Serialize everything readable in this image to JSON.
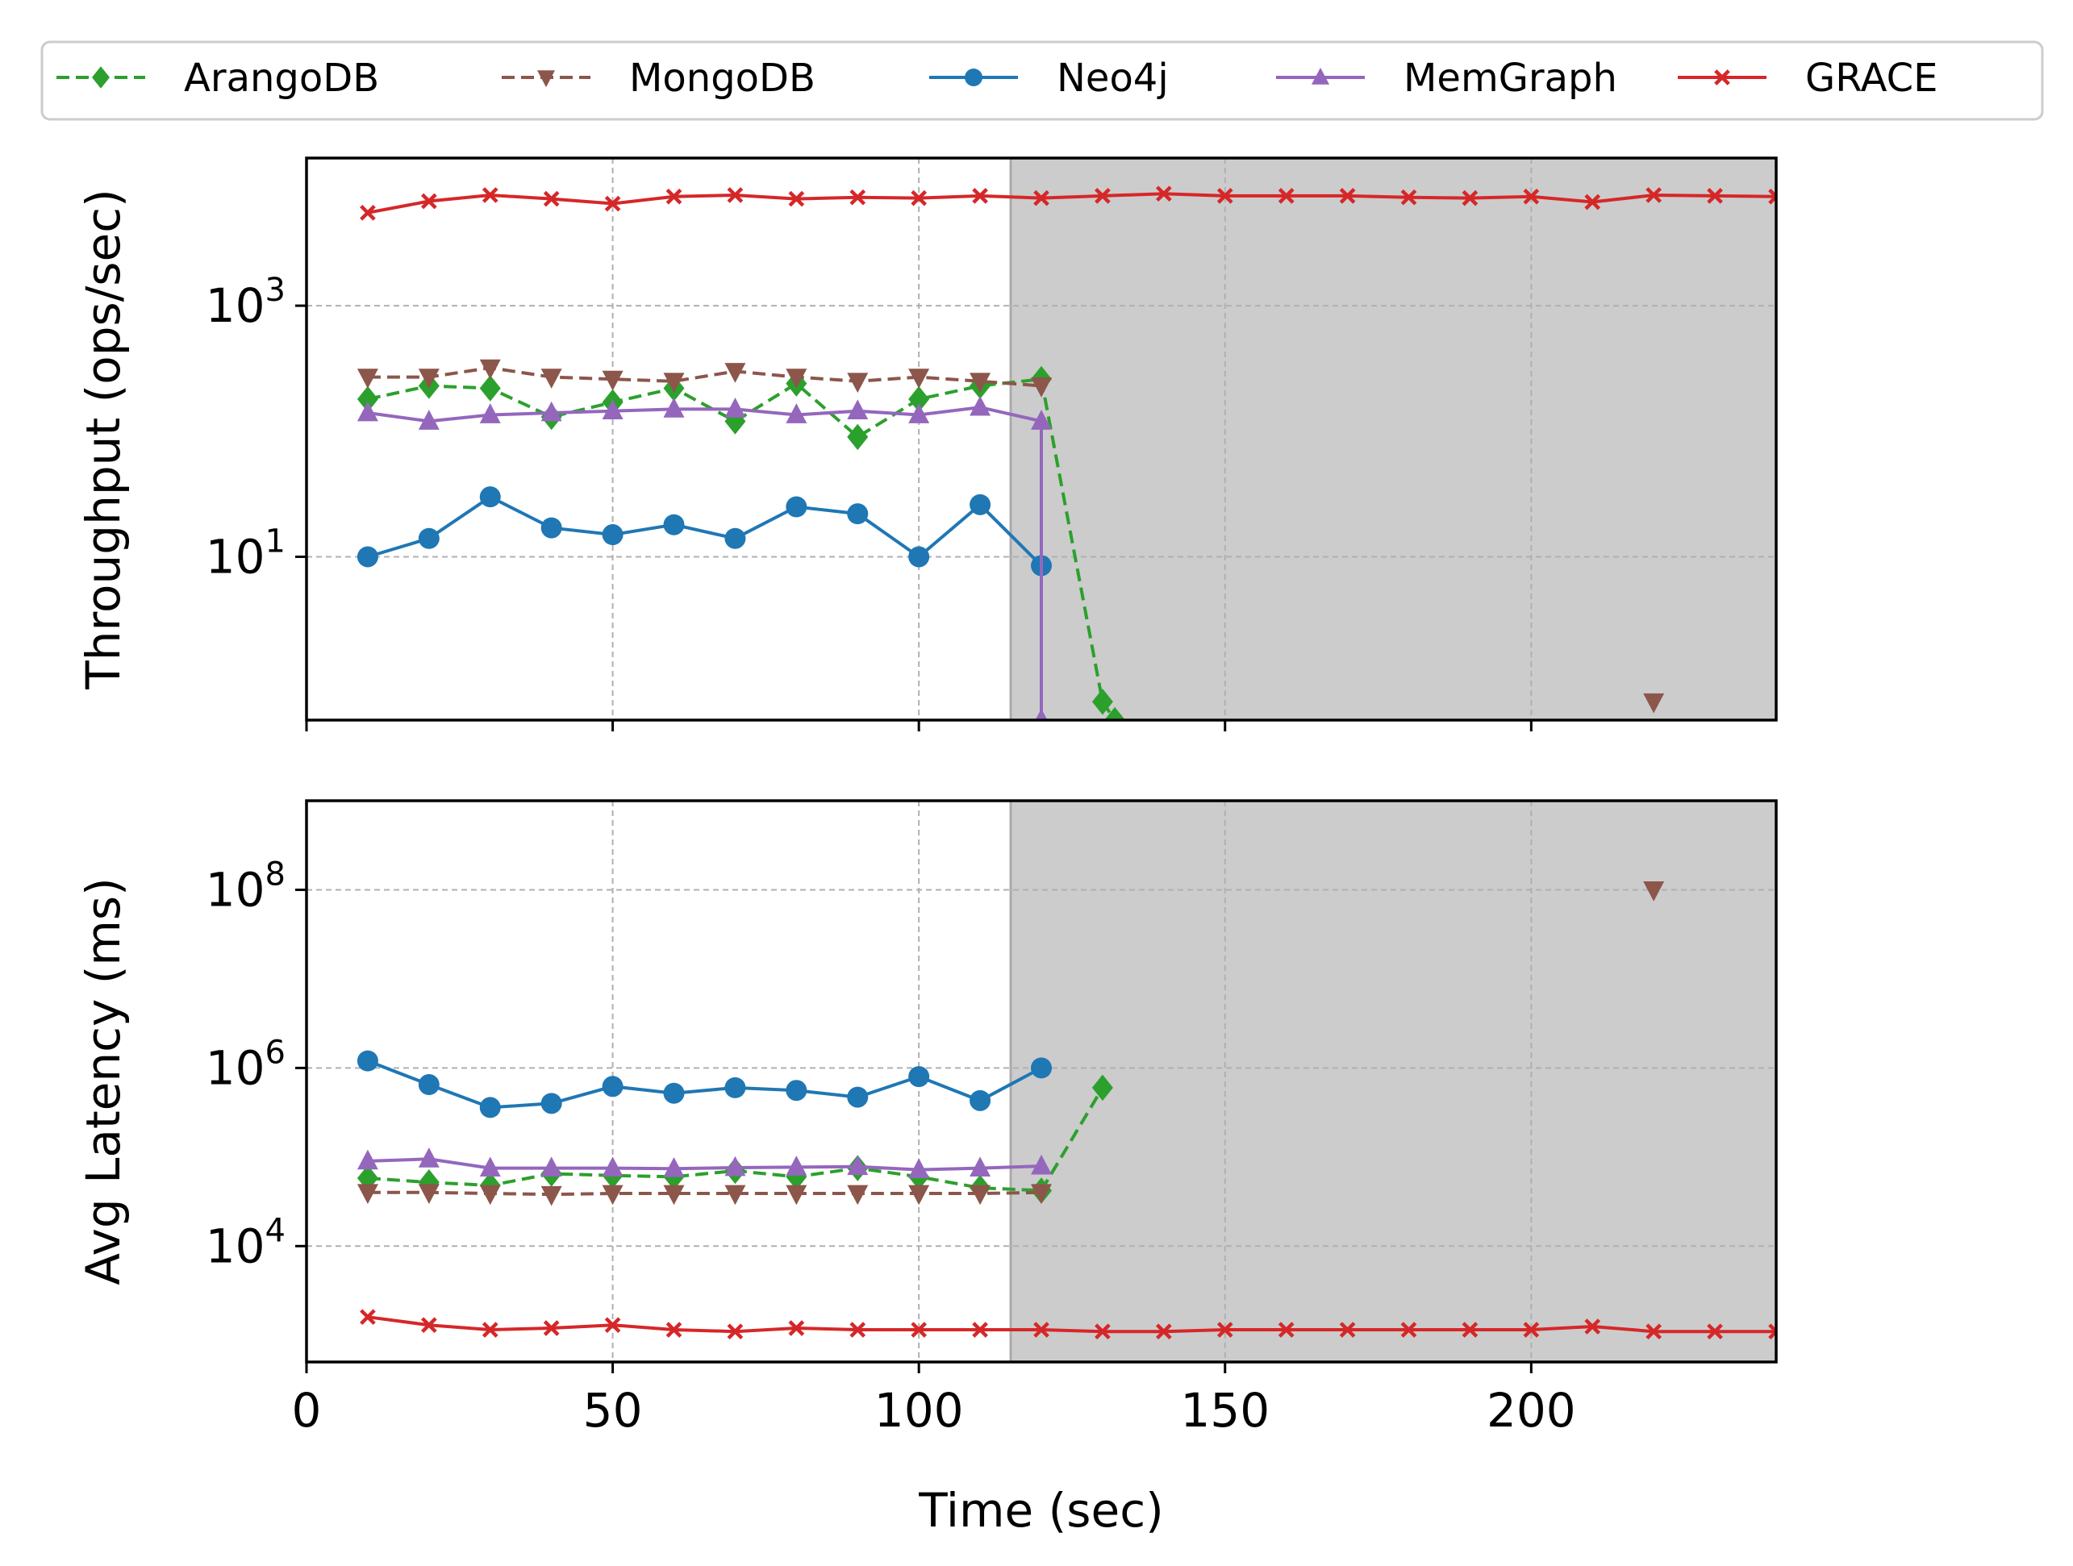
{
  "legend": {
    "placement": "top",
    "entries": [
      {
        "name": "ArangoDB",
        "color": "#2ca02c",
        "marker": "diamond",
        "dash": true
      },
      {
        "name": "MongoDB",
        "color": "#8c564b",
        "marker": "triangle-down",
        "dash": true
      },
      {
        "name": "Neo4j",
        "color": "#1f77b4",
        "marker": "circle",
        "dash": false
      },
      {
        "name": "MemGraph",
        "color": "#9467bd",
        "marker": "triangle-up",
        "dash": false
      },
      {
        "name": "GRACE",
        "color": "#d62728",
        "marker": "x",
        "dash": false
      }
    ]
  },
  "chart_data": [
    {
      "type": "line",
      "ylabel": "Throughput (ops/sec)",
      "yscale": "log",
      "xlim": [
        0,
        240
      ],
      "ylim": [
        0.5,
        15000
      ],
      "x_ticks": [
        0,
        50,
        100,
        150,
        200
      ],
      "y_ticks": [
        {
          "value": 1000,
          "base": "10",
          "exp": "3"
        },
        {
          "value": 10,
          "base": "10",
          "exp": "1"
        }
      ],
      "grid": true,
      "shaded_region": {
        "x_start": 115,
        "x_end": 240,
        "color": "#cccccc"
      },
      "series": [
        {
          "name": "ArangoDB",
          "x": [
            10,
            20,
            30,
            40,
            50,
            60,
            70,
            80,
            90,
            100,
            110,
            120,
            130,
            132
          ],
          "y": [
            180,
            230,
            220,
            130,
            170,
            220,
            120,
            240,
            90,
            180,
            230,
            260,
            0.7,
            0.5
          ]
        },
        {
          "name": "MongoDB",
          "x": [
            10,
            20,
            30,
            40,
            50,
            60,
            70,
            80,
            90,
            100,
            110,
            120
          ],
          "y": [
            270,
            270,
            320,
            270,
            260,
            250,
            300,
            270,
            250,
            270,
            250,
            230
          ]
        },
        {
          "name": "MongoDB",
          "x": [
            220
          ],
          "y": [
            0.7
          ]
        },
        {
          "name": "Neo4j",
          "x": [
            10,
            20,
            30,
            40,
            50,
            60,
            70,
            80,
            90,
            100,
            110,
            120
          ],
          "y": [
            10,
            14,
            30,
            17,
            15,
            18,
            14,
            25,
            22,
            10,
            26,
            8.5
          ]
        },
        {
          "name": "MemGraph",
          "x": [
            10,
            20,
            30,
            40,
            50,
            60,
            70,
            80,
            90,
            100,
            110,
            120,
            120
          ],
          "y": [
            140,
            120,
            135,
            140,
            145,
            150,
            150,
            135,
            145,
            135,
            155,
            120,
            0.5
          ]
        },
        {
          "name": "GRACE",
          "x": [
            10,
            20,
            30,
            40,
            50,
            60,
            70,
            80,
            90,
            100,
            110,
            120,
            130,
            140,
            150,
            160,
            170,
            180,
            190,
            200,
            210,
            220,
            230,
            240
          ],
          "y": [
            5500,
            6800,
            7600,
            7100,
            6500,
            7400,
            7600,
            7100,
            7300,
            7200,
            7500,
            7200,
            7500,
            7800,
            7500,
            7500,
            7500,
            7300,
            7200,
            7400,
            6700,
            7600,
            7500,
            7400
          ]
        }
      ]
    },
    {
      "type": "line",
      "ylabel": "Avg Latency (ms)",
      "xlabel": "Time (sec)",
      "yscale": "log",
      "xlim": [
        0,
        240
      ],
      "ylim": [
        500,
        1000000000
      ],
      "x_ticks": [
        0,
        50,
        100,
        150,
        200
      ],
      "y_ticks": [
        {
          "value": 100000000,
          "base": "10",
          "exp": "8"
        },
        {
          "value": 1000000,
          "base": "10",
          "exp": "6"
        },
        {
          "value": 10000,
          "base": "10",
          "exp": "4"
        }
      ],
      "grid": true,
      "shaded_region": {
        "x_start": 115,
        "x_end": 240,
        "color": "#cccccc"
      },
      "series": [
        {
          "name": "ArangoDB",
          "x": [
            10,
            20,
            30,
            40,
            50,
            60,
            70,
            80,
            90,
            100,
            110,
            120,
            130
          ],
          "y": [
            58000,
            52000,
            48000,
            65000,
            62000,
            60000,
            70000,
            60000,
            75000,
            60000,
            45000,
            42000,
            600000
          ]
        },
        {
          "name": "MongoDB",
          "x": [
            10,
            20,
            30,
            40,
            50,
            60,
            70,
            80,
            90,
            100,
            110,
            120
          ],
          "y": [
            40000,
            40000,
            39000,
            38000,
            39000,
            39000,
            39000,
            39000,
            39000,
            39000,
            39000,
            40000
          ]
        },
        {
          "name": "MongoDB",
          "x": [
            220
          ],
          "y": [
            100000000
          ]
        },
        {
          "name": "Neo4j",
          "x": [
            10,
            20,
            30,
            40,
            50,
            60,
            70,
            80,
            90,
            100,
            110,
            120
          ],
          "y": [
            1200000,
            650000,
            360000,
            400000,
            620000,
            520000,
            600000,
            560000,
            470000,
            800000,
            430000,
            1000000
          ]
        },
        {
          "name": "MemGraph",
          "x": [
            10,
            20,
            30,
            40,
            50,
            60,
            70,
            80,
            90,
            100,
            110,
            120
          ],
          "y": [
            90000,
            95000,
            75000,
            75000,
            75000,
            74000,
            76000,
            77000,
            78000,
            72000,
            75000,
            79000
          ]
        },
        {
          "name": "GRACE",
          "x": [
            10,
            20,
            30,
            40,
            50,
            60,
            70,
            80,
            90,
            100,
            110,
            120,
            130,
            140,
            150,
            160,
            170,
            180,
            190,
            200,
            210,
            220,
            230,
            240
          ],
          "y": [
            1600,
            1300,
            1150,
            1200,
            1300,
            1150,
            1100,
            1200,
            1150,
            1150,
            1150,
            1150,
            1100,
            1100,
            1150,
            1150,
            1150,
            1150,
            1150,
            1150,
            1250,
            1100,
            1100,
            1100
          ]
        }
      ]
    }
  ]
}
